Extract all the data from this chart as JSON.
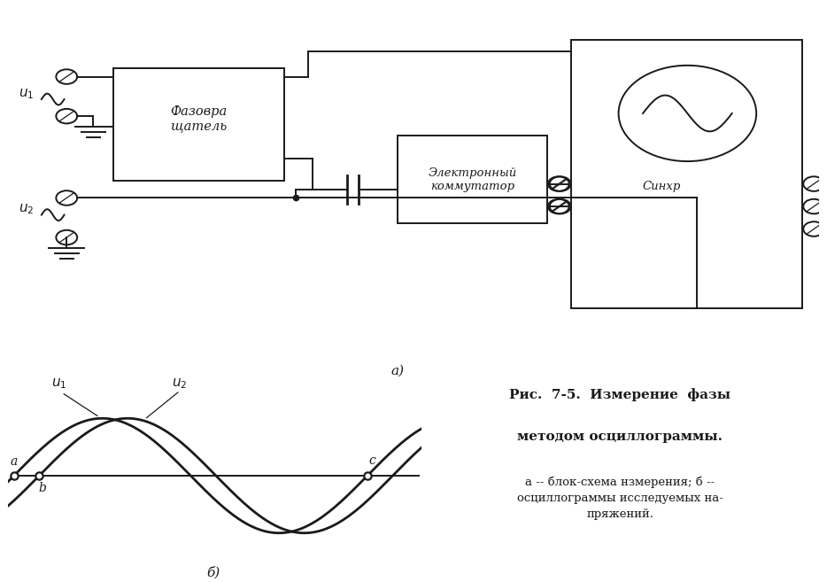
{
  "bg_color": "#ffffff",
  "line_color": "#1a1a1a",
  "box1_label": "Фазовра\nщатель",
  "box2_label": "Электронный\nкоммутатор",
  "sinhr_label": "Синхр",
  "label_a": "а)",
  "label_b": "б)",
  "title_line1": "Рис.  7-5.  Измерение  фазы",
  "title_line2": "методом осциллограммы.",
  "caption": "а -- блок-схема нзмерения; б --\nосциллограммы исследуемых на-\nпряжений."
}
